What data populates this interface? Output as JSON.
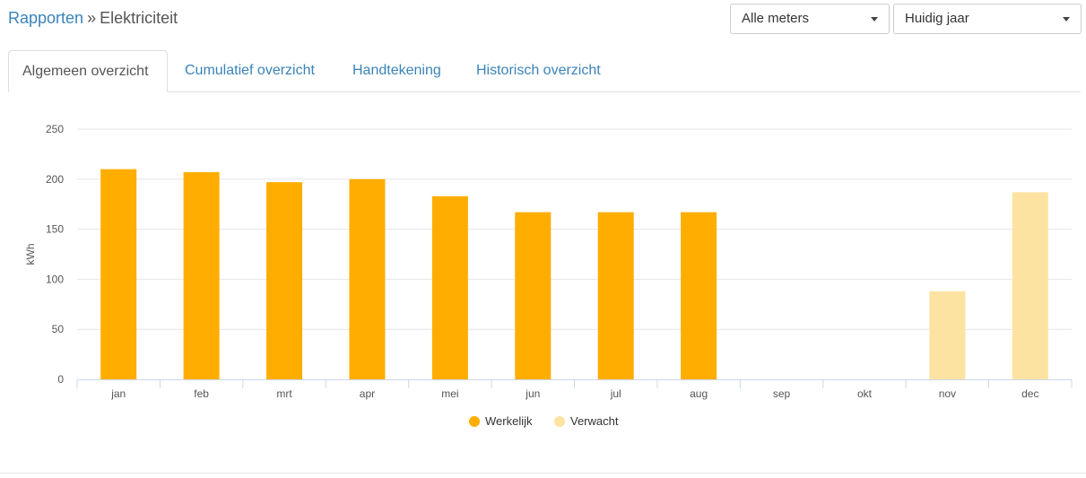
{
  "breadcrumb": {
    "parent": "Rapporten",
    "separator": "»",
    "current": "Elektriciteit"
  },
  "filters": {
    "meters": "Alle meters",
    "period": "Huidig jaar"
  },
  "tabs": [
    {
      "label": "Algemeen overzicht",
      "active": true
    },
    {
      "label": "Cumulatief overzicht",
      "active": false
    },
    {
      "label": "Handtekening",
      "active": false
    },
    {
      "label": "Historisch overzicht",
      "active": false
    }
  ],
  "colors": {
    "link": "#3a83b8",
    "actual": "#ffad00",
    "expected": "#fde3a1",
    "grid": "#e6e6e6"
  },
  "chart_data": {
    "type": "bar",
    "ylabel": "kWh",
    "ylim": [
      0,
      250
    ],
    "yticks": [
      0,
      50,
      100,
      150,
      200,
      250
    ],
    "categories": [
      "jan",
      "feb",
      "mrt",
      "apr",
      "mei",
      "jun",
      "jul",
      "aug",
      "sep",
      "okt",
      "nov",
      "dec"
    ],
    "series": [
      {
        "name": "Werkelijk",
        "color": "#ffad00",
        "values": [
          210,
          207,
          197,
          200,
          183,
          167,
          167,
          167,
          null,
          null,
          null,
          null
        ]
      },
      {
        "name": "Verwacht",
        "color": "#fde3a1",
        "values": [
          null,
          null,
          null,
          null,
          null,
          null,
          null,
          null,
          null,
          null,
          88,
          187
        ]
      }
    ],
    "grid": true,
    "legend": "bottom-center"
  }
}
